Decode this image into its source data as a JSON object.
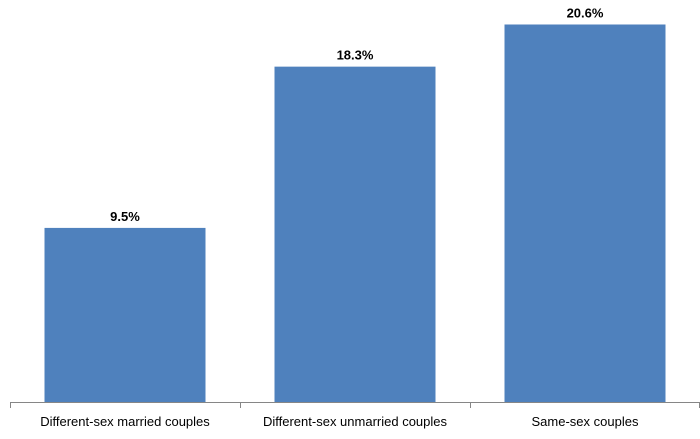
{
  "chart_data": {
    "type": "bar",
    "categories": [
      "Different-sex married couples",
      "Different-sex unmarried couples",
      "Same-sex couples"
    ],
    "values": [
      9.5,
      18.3,
      20.6
    ],
    "value_labels": [
      "9.5%",
      "18.3%",
      "20.6%"
    ],
    "unit": "%",
    "title": "",
    "xlabel": "",
    "ylabel": "",
    "ylim": [
      0,
      21.5
    ],
    "grid": false,
    "legend": "none",
    "colors": {
      "bar": "#4f81bd",
      "axis": "#868686",
      "text": "#000000"
    }
  }
}
